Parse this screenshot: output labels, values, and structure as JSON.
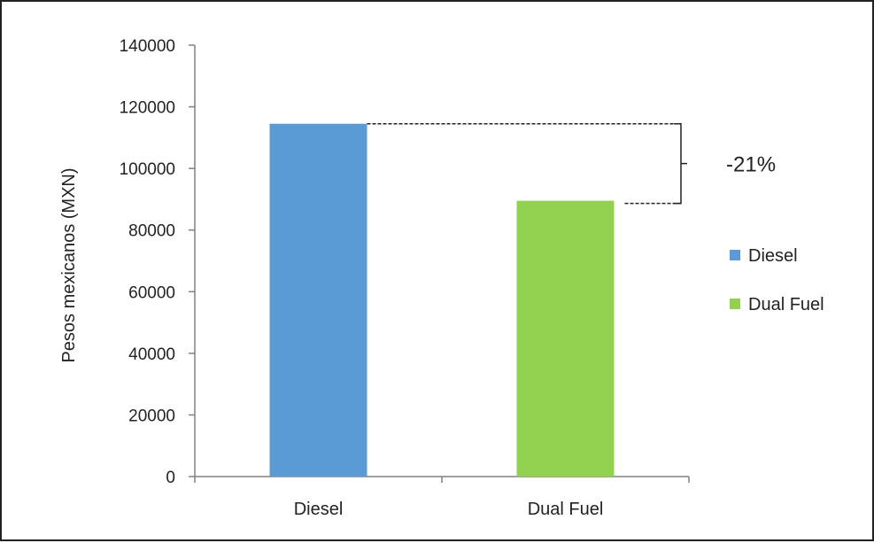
{
  "chart_data": {
    "type": "bar",
    "categories": [
      "Diesel",
      "Dual Fuel"
    ],
    "series": [
      {
        "name": "Diesel",
        "category": "Diesel",
        "value": 114500,
        "color": "#5b9bd5"
      },
      {
        "name": "Dual Fuel",
        "category": "Dual Fuel",
        "value": 89500,
        "color": "#92d050"
      }
    ],
    "ylabel": "Pesos mexicanos  (MXN)",
    "xlabel": "",
    "ylim": [
      0,
      140000
    ],
    "yticks": [
      0,
      20000,
      40000,
      60000,
      80000,
      100000,
      120000,
      140000
    ],
    "grid": false,
    "legend_position": "right",
    "annotation": {
      "label": "-21%",
      "from": "Diesel",
      "to": "Dual Fuel"
    }
  }
}
